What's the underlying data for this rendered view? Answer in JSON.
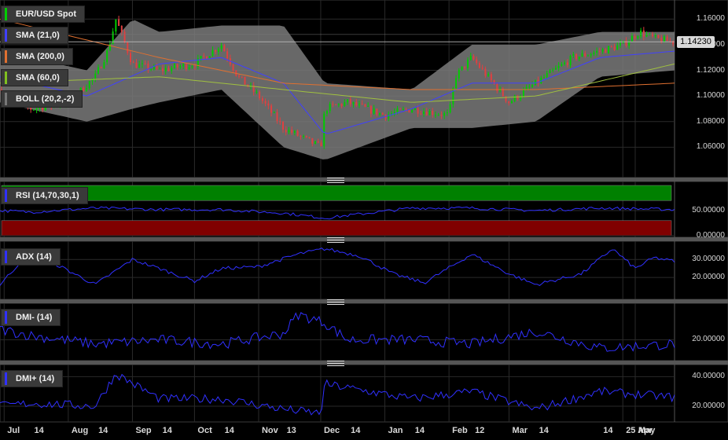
{
  "labels": {
    "price": "EUR/USD Spot",
    "sma21": "SMA (21,0)",
    "sma200": "SMA (200,0)",
    "sma60": "SMA (60,0)",
    "boll": "BOLL (20,2,-2)",
    "rsi": "RSI (14,70,30,1)",
    "adx": "ADX (14)",
    "dmim": "DMI- (14)",
    "dmip": "DMI+ (14)"
  },
  "last_price": "1.14230",
  "colors": {
    "up": "#00cc00",
    "down": "#e04040",
    "sma21": "#4040ff",
    "sma200": "#e07030",
    "sma60": "#a0c040",
    "band_fill": "#7a7a7a",
    "indicator": "#3030ff",
    "rsi_over": "#008000",
    "rsi_under": "#800000"
  },
  "chart_data": [
    {
      "type": "line",
      "panel": "price",
      "ylim": [
        1.04,
        1.17
      ],
      "yticks": [
        "1.06000",
        "1.08000",
        "1.10000",
        "1.12000",
        "1.14000",
        "1.16000"
      ],
      "xticks": [
        "Jul",
        "14",
        "Aug",
        "14",
        "Sep",
        "14",
        "Oct",
        "14",
        "Nov",
        "13",
        "Dec",
        "14",
        "Jan",
        "14",
        "Feb",
        "12",
        "Mar",
        "14",
        "25 Apr",
        "14",
        "May"
      ],
      "x_range": [
        "2015-06-29",
        "2016-05-20"
      ],
      "series": [
        {
          "name": "EUR/USD Spot",
          "kind": "candlestick",
          "x": [
            "2015-06-29",
            "2015-07-14",
            "2015-08-01",
            "2015-08-14",
            "2015-08-20",
            "2015-08-24",
            "2015-09-01",
            "2015-09-14",
            "2015-10-01",
            "2015-10-14",
            "2015-10-22",
            "2015-11-01",
            "2015-11-13",
            "2015-12-01",
            "2015-12-03",
            "2015-12-14",
            "2016-01-01",
            "2016-01-14",
            "2016-02-01",
            "2016-02-04",
            "2016-02-12",
            "2016-03-01",
            "2016-03-14",
            "2016-04-01",
            "2016-04-14",
            "2016-04-25",
            "2016-05-03",
            "2016-05-10",
            "2016-05-20"
          ],
          "close": [
            1.105,
            1.09,
            1.095,
            1.115,
            1.135,
            1.16,
            1.125,
            1.12,
            1.125,
            1.14,
            1.115,
            1.1,
            1.075,
            1.06,
            1.09,
            1.095,
            1.085,
            1.09,
            1.085,
            1.115,
            1.13,
            1.095,
            1.11,
            1.13,
            1.135,
            1.14,
            1.15,
            1.145,
            1.142
          ]
        },
        {
          "name": "SMA (21,0)",
          "x": [
            "2015-06-29",
            "2015-08-10",
            "2015-09-14",
            "2015-10-14",
            "2015-11-13",
            "2015-12-03",
            "2016-01-14",
            "2016-02-12",
            "2016-03-14",
            "2016-04-14",
            "2016-05-20"
          ],
          "values": [
            1.115,
            1.1,
            1.125,
            1.13,
            1.11,
            1.07,
            1.09,
            1.11,
            1.11,
            1.13,
            1.135
          ]
        },
        {
          "name": "SMA (200,0)",
          "x": [
            "2015-06-29",
            "2015-09-14",
            "2015-11-13",
            "2016-01-14",
            "2016-03-14",
            "2016-05-20"
          ],
          "values": [
            1.16,
            1.13,
            1.11,
            1.105,
            1.105,
            1.11
          ]
        },
        {
          "name": "SMA (60,0)",
          "x": [
            "2015-06-29",
            "2015-09-14",
            "2015-11-13",
            "2016-01-14",
            "2016-03-14",
            "2016-05-20"
          ],
          "values": [
            1.11,
            1.115,
            1.105,
            1.095,
            1.1,
            1.125
          ]
        },
        {
          "name": "BOLL (20,2,-2)",
          "kind": "band",
          "x": [
            "2015-06-29",
            "2015-08-10",
            "2015-09-01",
            "2015-09-14",
            "2015-10-14",
            "2015-11-13",
            "2015-12-03",
            "2016-01-14",
            "2016-02-12",
            "2016-03-14",
            "2016-04-14",
            "2016-05-20"
          ],
          "upper": [
            1.135,
            1.12,
            1.16,
            1.15,
            1.155,
            1.155,
            1.11,
            1.105,
            1.14,
            1.14,
            1.15,
            1.15
          ],
          "lower": [
            1.095,
            1.08,
            1.09,
            1.095,
            1.105,
            1.06,
            1.05,
            1.075,
            1.075,
            1.08,
            1.115,
            1.12
          ]
        }
      ]
    },
    {
      "type": "line",
      "panel": "rsi",
      "name": "RSI (14,70,30,1)",
      "ylim": [
        0,
        100
      ],
      "yticks": [
        "0.00000",
        "50.00000"
      ],
      "zones": {
        "over": 70,
        "under": 30
      },
      "x": [
        "2015-06-29",
        "2015-07-14",
        "2015-08-14",
        "2015-09-14",
        "2015-10-14",
        "2015-11-13",
        "2015-12-03",
        "2016-01-14",
        "2016-02-12",
        "2016-03-14",
        "2016-04-14",
        "2016-05-20"
      ],
      "values": [
        50,
        47,
        55,
        52,
        52,
        45,
        35,
        55,
        55,
        50,
        55,
        52
      ]
    },
    {
      "type": "line",
      "panel": "adx",
      "name": "ADX (14)",
      "ylim": [
        10,
        38
      ],
      "yticks": [
        "20.00000",
        "30.00000"
      ],
      "x": [
        "2015-06-29",
        "2015-07-10",
        "2015-07-25",
        "2015-08-14",
        "2015-09-01",
        "2015-09-14",
        "2015-10-01",
        "2015-10-14",
        "2015-11-01",
        "2015-11-20",
        "2015-12-03",
        "2015-12-20",
        "2016-01-05",
        "2016-01-20",
        "2016-02-12",
        "2016-03-01",
        "2016-03-14",
        "2016-04-05",
        "2016-04-20",
        "2016-05-01",
        "2016-05-10",
        "2016-05-20"
      ],
      "values": [
        16,
        30,
        28,
        16,
        30,
        25,
        18,
        25,
        26,
        33,
        36,
        32,
        22,
        17,
        33,
        22,
        16,
        22,
        36,
        25,
        31,
        29
      ]
    },
    {
      "type": "line",
      "panel": "dmim",
      "name": "DMI- (14)",
      "ylim": [
        12,
        35
      ],
      "yticks": [
        "20.00000"
      ],
      "x": [
        "2015-06-29",
        "2015-07-14",
        "2015-08-14",
        "2015-09-14",
        "2015-10-14",
        "2015-11-13",
        "2015-11-20",
        "2015-12-03",
        "2015-12-14",
        "2016-01-14",
        "2016-02-12",
        "2016-03-14",
        "2016-04-14",
        "2016-05-20"
      ],
      "values": [
        25,
        22,
        18,
        20,
        18,
        23,
        32,
        28,
        20,
        20,
        18,
        24,
        16,
        18
      ]
    },
    {
      "type": "line",
      "panel": "dmip",
      "name": "DMI+ (14)",
      "ylim": [
        12,
        45
      ],
      "yticks": [
        "20.00000",
        "40.00000"
      ],
      "x": [
        "2015-06-29",
        "2015-07-14",
        "2015-08-14",
        "2015-08-24",
        "2015-09-14",
        "2015-10-14",
        "2015-11-13",
        "2015-12-01",
        "2015-12-03",
        "2016-01-14",
        "2016-02-12",
        "2016-03-14",
        "2016-04-14",
        "2016-05-20"
      ],
      "values": [
        20,
        22,
        20,
        42,
        25,
        25,
        18,
        15,
        35,
        25,
        30,
        18,
        30,
        26
      ]
    }
  ]
}
